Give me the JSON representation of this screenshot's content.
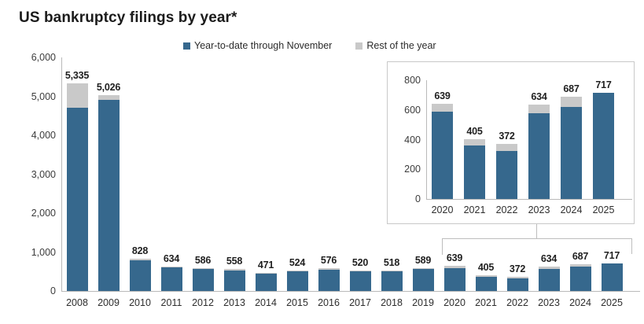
{
  "title": "US bankruptcy filings by year*",
  "legend": [
    {
      "label": "Year-to-date through November",
      "color": "#36688d"
    },
    {
      "label": "Rest of the year",
      "color": "#c9c9c9"
    }
  ],
  "colors": {
    "ytd_bar": "#36688d",
    "rest_bar": "#c9c9c9",
    "axis": "#b9b9b9",
    "inset_border": "#c9c9c9"
  },
  "chart_data": {
    "type": "bar",
    "stacked": true,
    "title": "US bankruptcy filings by year*",
    "legend_position": "top",
    "grid": false,
    "categories": [
      "2008",
      "2009",
      "2010",
      "2011",
      "2012",
      "2013",
      "2014",
      "2015",
      "2016",
      "2017",
      "2018",
      "2019",
      "2020",
      "2021",
      "2022",
      "2023",
      "2024",
      "2025"
    ],
    "bar_labels": [
      "5,335",
      "5,026",
      "828",
      "634",
      "586",
      "558",
      "471",
      "524",
      "576",
      "520",
      "518",
      "589",
      "639",
      "405",
      "372",
      "634",
      "687",
      "717"
    ],
    "totals": [
      5335,
      5026,
      828,
      634,
      586,
      558,
      471,
      524,
      576,
      520,
      518,
      589,
      639,
      405,
      372,
      634,
      687,
      717
    ],
    "series": [
      {
        "name": "Year-to-date through November",
        "color": "#36688d",
        "values": [
          4700,
          4900,
          795,
          605,
          560,
          530,
          450,
          500,
          550,
          495,
          495,
          560,
          590,
          360,
          325,
          575,
          620,
          717
        ]
      },
      {
        "name": "Rest of the year",
        "color": "#c9c9c9",
        "values": [
          635,
          126,
          33,
          29,
          26,
          28,
          21,
          24,
          26,
          25,
          23,
          29,
          49,
          45,
          47,
          59,
          67,
          0
        ]
      }
    ],
    "y_axis": {
      "ylim": [
        0,
        6000
      ],
      "ticks": [
        "6,000",
        "5,000",
        "4,000",
        "3,000",
        "2,000",
        "1,000",
        "0"
      ]
    },
    "inset": {
      "type": "bar",
      "stacked": true,
      "categories": [
        "2020",
        "2021",
        "2022",
        "2023",
        "2024",
        "2025"
      ],
      "bar_labels": [
        "639",
        "405",
        "372",
        "634",
        "687",
        "717"
      ],
      "totals": [
        639,
        405,
        372,
        634,
        687,
        717
      ],
      "series": [
        {
          "name": "Year-to-date through November",
          "color": "#36688d",
          "values": [
            590,
            360,
            325,
            575,
            620,
            717
          ]
        },
        {
          "name": "Rest of the year",
          "color": "#c9c9c9",
          "values": [
            49,
            45,
            47,
            59,
            67,
            0
          ]
        }
      ],
      "y_axis": {
        "ylim": [
          0,
          800
        ],
        "ticks": [
          "800",
          "600",
          "400",
          "200",
          "0"
        ]
      }
    }
  }
}
